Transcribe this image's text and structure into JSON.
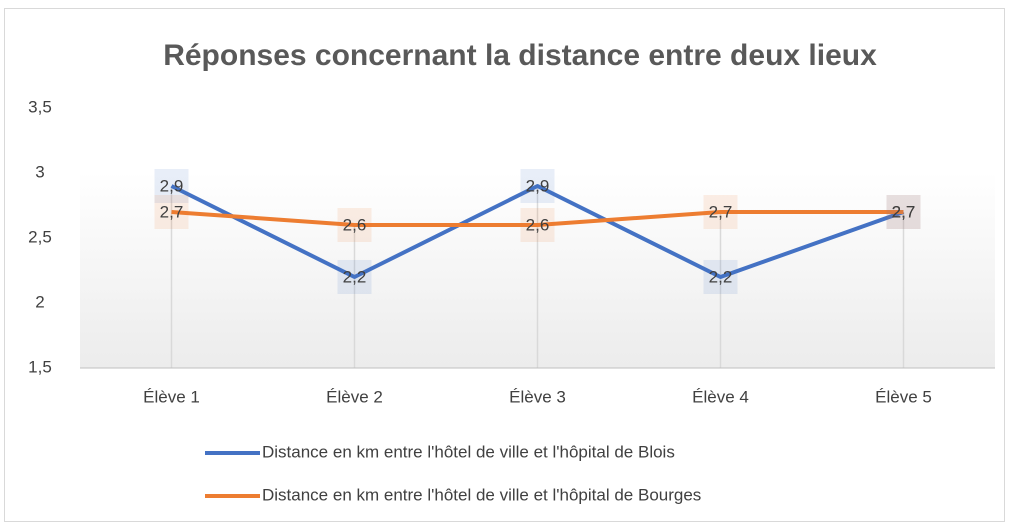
{
  "chart_data": {
    "type": "line",
    "title": "Réponses concernant la distance entre deux lieux",
    "categories": [
      "Élève 1",
      "Élève 2",
      "Élève 3",
      "Élève 4",
      "Élève 5"
    ],
    "series": [
      {
        "name": "Distance en km entre l'hôtel de ville et l'hôpital de Blois",
        "color": "#4472c4",
        "values": [
          2.9,
          2.2,
          2.9,
          2.2,
          2.7
        ],
        "value_labels": [
          "2,9",
          "2,2",
          "2,9",
          "2,2",
          "2,7"
        ]
      },
      {
        "name": "Distance en km entre l'hôtel de ville et l'hôpital de Bourges",
        "color": "#ed7d31",
        "values": [
          2.7,
          2.6,
          2.6,
          2.7,
          2.7
        ],
        "value_labels": [
          "2,7",
          "2,6",
          "2,6",
          "2,7",
          "2,7"
        ]
      }
    ],
    "ylim": [
      1.5,
      3.5
    ],
    "yticks": [
      {
        "value": 1.5,
        "label": "1,5"
      },
      {
        "value": 2,
        "label": "2"
      },
      {
        "value": 2.5,
        "label": "2,5"
      },
      {
        "value": 3,
        "label": "3"
      },
      {
        "value": 3.5,
        "label": "3,5"
      }
    ],
    "grid": false,
    "drop_lines": true,
    "legend": "bottom"
  }
}
